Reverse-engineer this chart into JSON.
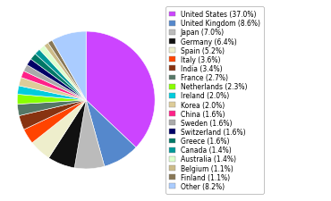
{
  "labels": [
    "United States (37.0%)",
    "United Kingdom (8.6%)",
    "Japan (7.0%)",
    "Germany (6.4%)",
    "Spain (5.2%)",
    "Italy (3.6%)",
    "India (3.4%)",
    "France (2.7%)",
    "Netherlands (2.3%)",
    "Ireland (2.0%)",
    "Korea (2.0%)",
    "China (1.6%)",
    "Sweden (1.6%)",
    "Switzerland (1.6%)",
    "Greece (1.6%)",
    "Canada (1.4%)",
    "Australia (1.4%)",
    "Belgium (1.1%)",
    "Finland (1.1%)",
    "Other (8.2%)"
  ],
  "values": [
    37.0,
    8.6,
    7.0,
    6.4,
    5.2,
    3.6,
    3.4,
    2.7,
    2.3,
    2.0,
    2.0,
    1.6,
    1.6,
    1.6,
    1.6,
    1.4,
    1.4,
    1.1,
    1.1,
    8.2
  ],
  "colors": [
    "#cc44ff",
    "#5588cc",
    "#bbbbbb",
    "#111111",
    "#eeeecc",
    "#ff4400",
    "#883311",
    "#557766",
    "#88ff00",
    "#00ccdd",
    "#ddcc99",
    "#ff2288",
    "#aaaaaa",
    "#000066",
    "#007766",
    "#009999",
    "#ddffcc",
    "#ccbb88",
    "#887755",
    "#aaccff"
  ],
  "legend_fontsize": 5.5,
  "figsize": [
    3.7,
    2.26
  ],
  "dpi": 100
}
